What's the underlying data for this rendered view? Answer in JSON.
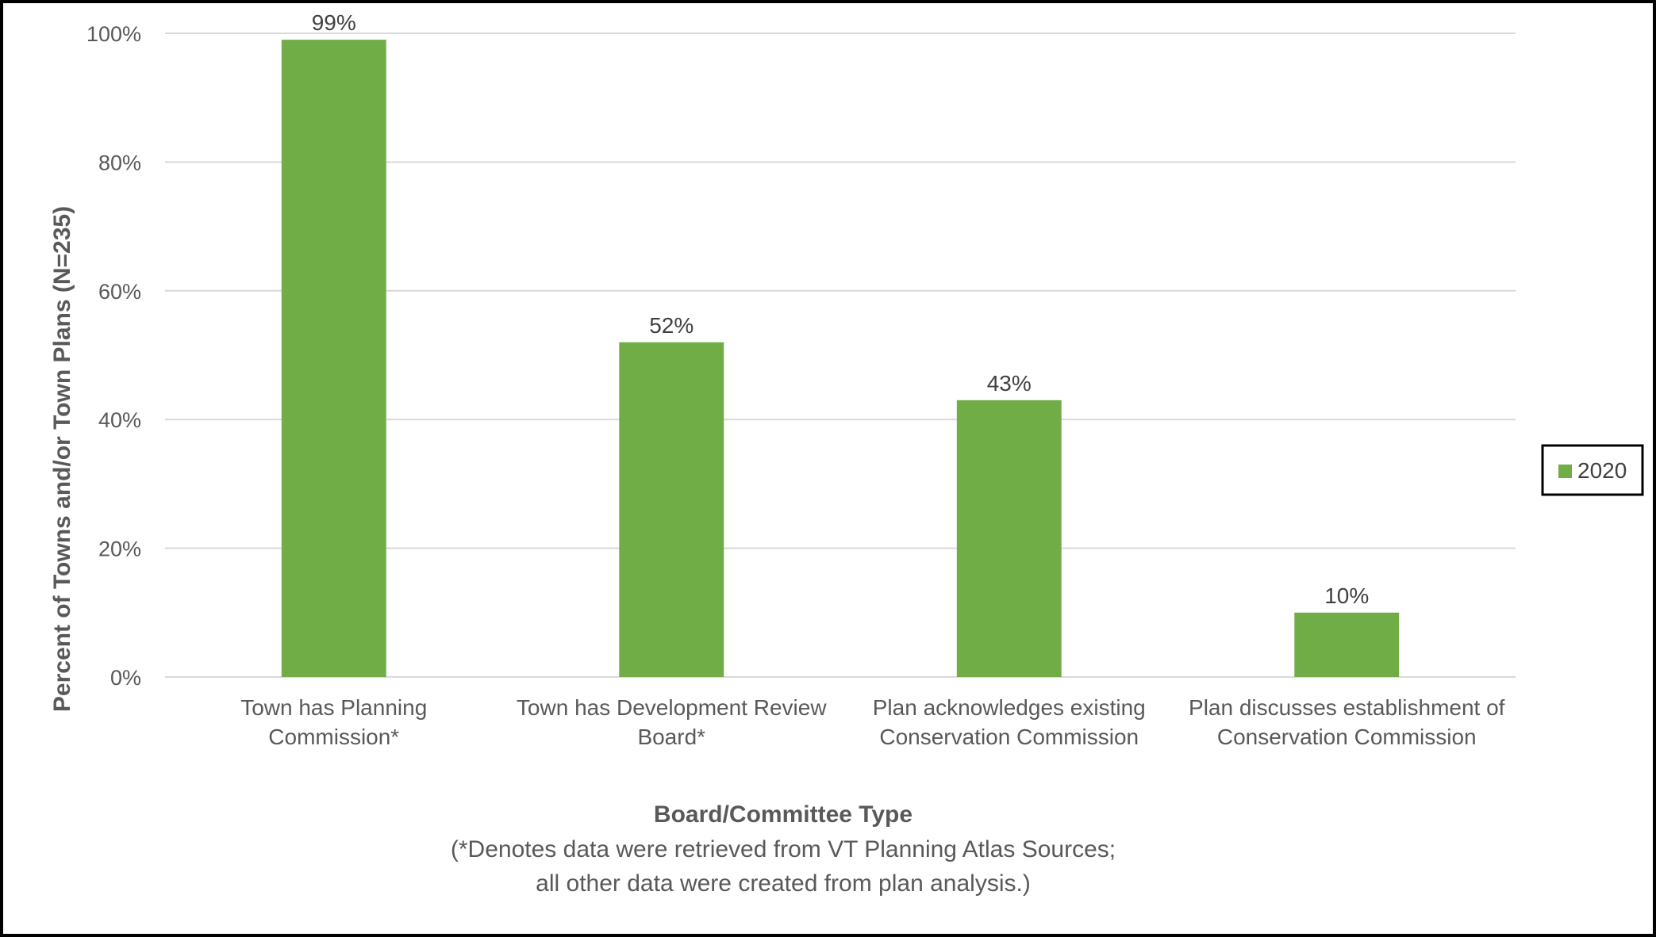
{
  "chart_data": {
    "type": "bar",
    "categories": [
      [
        "Town has Planning",
        "Commission*"
      ],
      [
        "Town has Development Review",
        "Board*"
      ],
      [
        "Plan acknowledges existing",
        "Conservation Commission"
      ],
      [
        "Plan discusses establishment of",
        "Conservation Commission"
      ]
    ],
    "series": [
      {
        "name": "2020",
        "values": [
          99,
          52,
          43,
          10
        ],
        "data_labels": [
          "99%",
          "52%",
          "43%",
          "10%"
        ],
        "color": "#70ad47"
      }
    ],
    "ylabel": "Percent of Towns and/or Town Plans (N=235)",
    "xlabel": "Board/Committee Type",
    "xlabel_note": [
      "(*Denotes data were retrieved from VT Planning Atlas Sources;",
      "all other data were created from plan analysis.)"
    ],
    "ylim": [
      0,
      100
    ],
    "yticks": [
      0,
      20,
      40,
      60,
      80,
      100
    ],
    "ytick_labels": [
      "0%",
      "20%",
      "40%",
      "60%",
      "80%",
      "100%"
    ],
    "grid": true,
    "legend_position": "right",
    "colors": {
      "bar": "#70ad47",
      "grid": "#d9d9d9",
      "text": "#595959",
      "frame": "#000000"
    }
  }
}
